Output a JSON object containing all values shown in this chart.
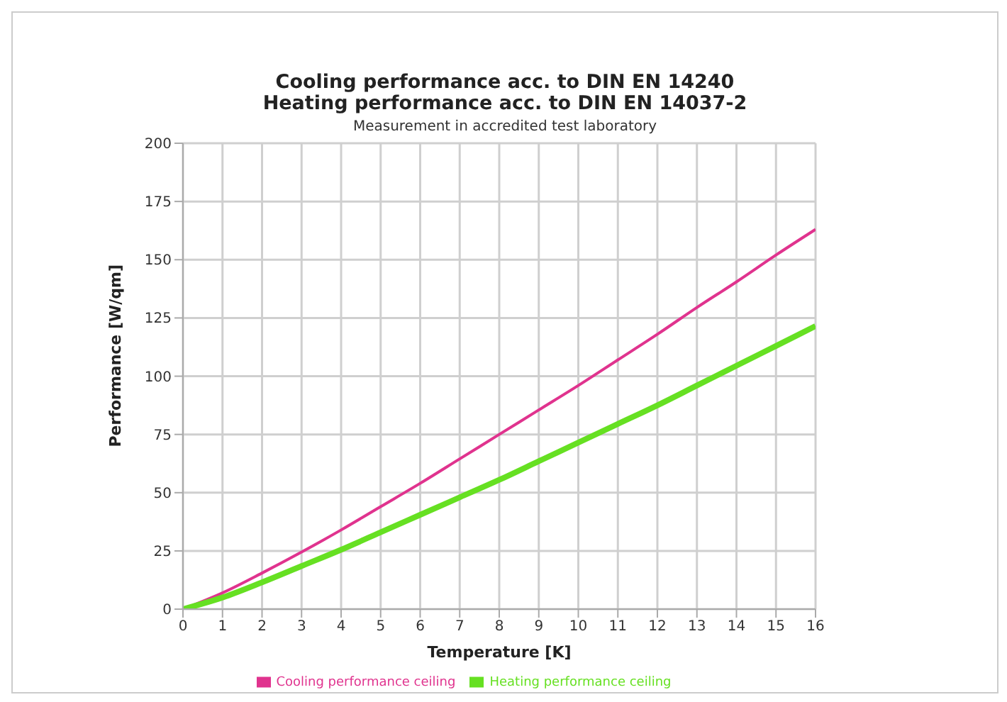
{
  "chart_data": {
    "type": "line",
    "title": "Cooling performance acc. to DIN EN 14240\nHeating performance acc. to DIN EN 14037-2",
    "subtitle": "Measurement in accredited test laboratory",
    "xlabel": "Temperature [K]",
    "ylabel": "Performance [W/qm]",
    "x": [
      0,
      1,
      2,
      3,
      4,
      5,
      6,
      7,
      8,
      9,
      10,
      11,
      12,
      13,
      14,
      15,
      16
    ],
    "series": [
      {
        "name": "Cooling performance ceiling",
        "color": "#e0338e",
        "values": [
          0,
          7,
          15.5,
          24.5,
          34,
          44,
          54,
          64.5,
          75,
          85.5,
          96,
          107,
          118,
          129.5,
          140.5,
          152,
          163
        ]
      },
      {
        "name": "Heating performance ceiling",
        "color": "#66e022",
        "values": [
          0,
          5,
          11.5,
          18.5,
          25.5,
          33,
          40.5,
          48,
          55.5,
          63.5,
          71.5,
          79.5,
          87.5,
          96,
          104.5,
          113,
          121.5
        ]
      }
    ],
    "xlim": [
      0,
      16
    ],
    "xticks": [
      0,
      1,
      2,
      3,
      4,
      5,
      6,
      7,
      8,
      9,
      10,
      11,
      12,
      13,
      14,
      15,
      16
    ],
    "ylim": [
      0,
      200
    ],
    "yticks": [
      0,
      25,
      50,
      75,
      100,
      125,
      150,
      175,
      200
    ],
    "grid": true,
    "legend": "bottom",
    "marker": "none",
    "line_style": "solid"
  }
}
